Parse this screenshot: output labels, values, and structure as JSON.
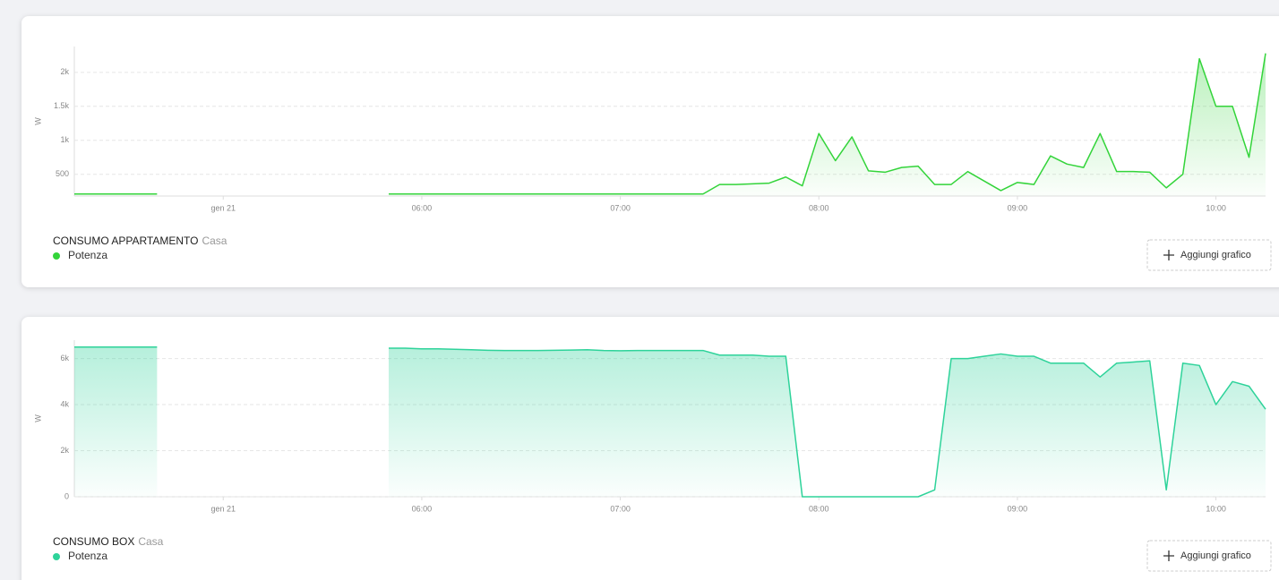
{
  "chart_data": [
    {
      "type": "line",
      "title": "CONSUMO APPARTAMENTO",
      "subtitle": "Casa",
      "ylabel": "W",
      "button": "Aggiungi grafico",
      "grid": true,
      "x": [
        "04:15",
        "04:20",
        "04:25",
        "04:30",
        "04:35",
        "04:40",
        "04:45",
        "04:50",
        "04:55",
        "05:00",
        "05:05",
        "05:10",
        "05:15",
        "05:20",
        "05:25",
        "05:30",
        "05:35",
        "05:40",
        "05:45",
        "05:50",
        "05:55",
        "06:00",
        "06:05",
        "06:10",
        "06:15",
        "06:20",
        "06:25",
        "06:30",
        "06:35",
        "06:40",
        "06:45",
        "06:50",
        "06:55",
        "07:00",
        "07:05",
        "07:10",
        "07:15",
        "07:20",
        "07:25",
        "07:30",
        "07:35",
        "07:40",
        "07:45",
        "07:50",
        "07:55",
        "08:00",
        "08:05",
        "08:10",
        "08:15",
        "08:20",
        "08:25",
        "08:30",
        "08:35",
        "08:40",
        "08:45",
        "08:50",
        "08:55",
        "09:00",
        "09:05",
        "09:10",
        "09:15",
        "09:20",
        "09:25",
        "09:30",
        "09:35",
        "09:40",
        "09:45",
        "09:50",
        "09:55",
        "10:00",
        "10:05",
        "10:10",
        "10:15"
      ],
      "xlim": [
        "04:15",
        "10:15"
      ],
      "xticks": [
        {
          "value": "05:00",
          "label": "gen 21"
        },
        "06:00",
        "07:00",
        "08:00",
        "09:00",
        "10:00"
      ],
      "ylim": [
        180,
        2380
      ],
      "yticks": [
        500,
        {
          "value": 1000,
          "label": "1k"
        },
        {
          "value": 1500,
          "label": "1.5k"
        },
        {
          "value": 2000,
          "label": "2k"
        }
      ],
      "series": [
        {
          "name": "Potenza",
          "color": "#33d43a",
          "values": [
            210,
            210,
            210,
            210,
            210,
            210,
            null,
            null,
            null,
            null,
            null,
            null,
            null,
            null,
            null,
            null,
            null,
            null,
            null,
            210,
            210,
            210,
            210,
            210,
            210,
            210,
            210,
            210,
            210,
            210,
            210,
            210,
            210,
            210,
            210,
            210,
            210,
            210,
            210,
            350,
            350,
            360,
            370,
            460,
            330,
            1100,
            700,
            1050,
            550,
            530,
            600,
            620,
            350,
            350,
            540,
            400,
            260,
            380,
            350,
            770,
            650,
            600,
            1100,
            540,
            540,
            530,
            300,
            500,
            2200,
            1500,
            1500,
            750,
            2280
          ]
        }
      ]
    },
    {
      "type": "line",
      "title": "CONSUMO BOX",
      "subtitle": "Casa",
      "ylabel": "W",
      "button": "Aggiungi grafico",
      "grid": true,
      "x": [
        "04:15",
        "04:20",
        "04:25",
        "04:30",
        "04:35",
        "04:40",
        "04:45",
        "04:50",
        "04:55",
        "05:00",
        "05:05",
        "05:10",
        "05:15",
        "05:20",
        "05:25",
        "05:30",
        "05:35",
        "05:40",
        "05:45",
        "05:50",
        "05:55",
        "06:00",
        "06:05",
        "06:10",
        "06:15",
        "06:20",
        "06:25",
        "06:30",
        "06:35",
        "06:40",
        "06:45",
        "06:50",
        "06:55",
        "07:00",
        "07:05",
        "07:10",
        "07:15",
        "07:20",
        "07:25",
        "07:30",
        "07:35",
        "07:40",
        "07:45",
        "07:50",
        "07:55",
        "08:00",
        "08:05",
        "08:10",
        "08:15",
        "08:20",
        "08:25",
        "08:30",
        "08:35",
        "08:40",
        "08:45",
        "08:50",
        "08:55",
        "09:00",
        "09:05",
        "09:10",
        "09:15",
        "09:20",
        "09:25",
        "09:30",
        "09:35",
        "09:40",
        "09:45",
        "09:50",
        "09:55",
        "10:00",
        "10:05",
        "10:10",
        "10:15"
      ],
      "xlim": [
        "04:15",
        "10:15"
      ],
      "xticks": [
        {
          "value": "05:00",
          "label": "gen 21"
        },
        "06:00",
        "07:00",
        "08:00",
        "09:00",
        "10:00"
      ],
      "ylim": [
        0,
        6800
      ],
      "yticks": [
        0,
        {
          "value": 2000,
          "label": "2k"
        },
        {
          "value": 4000,
          "label": "4k"
        },
        {
          "value": 6000,
          "label": "6k"
        }
      ],
      "series": [
        {
          "name": "Potenza",
          "color": "#2ed39a",
          "values": [
            6500,
            6500,
            6500,
            6500,
            6500,
            6500,
            null,
            null,
            null,
            null,
            null,
            null,
            null,
            null,
            null,
            null,
            null,
            null,
            null,
            6450,
            6450,
            6420,
            6420,
            6400,
            6380,
            6360,
            6350,
            6350,
            6350,
            6360,
            6370,
            6380,
            6350,
            6340,
            6350,
            6350,
            6350,
            6350,
            6350,
            6150,
            6150,
            6150,
            6100,
            6100,
            0,
            0,
            0,
            0,
            0,
            0,
            0,
            0,
            300,
            6000,
            6000,
            6100,
            6200,
            6100,
            6100,
            5800,
            5800,
            5800,
            5200,
            5800,
            5850,
            5900,
            300,
            5800,
            5700,
            4000,
            5000,
            4800,
            3800
          ]
        }
      ]
    }
  ]
}
